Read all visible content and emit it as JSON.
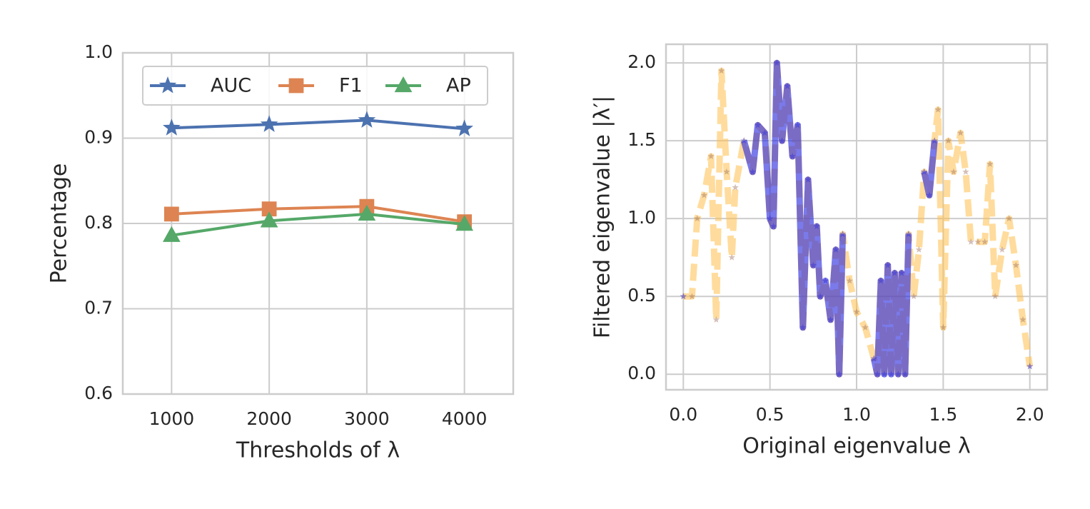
{
  "chart_data": [
    {
      "type": "line",
      "x": [
        1000,
        2000,
        3000,
        4000
      ],
      "xlim": [
        500,
        4500
      ],
      "xticks": [
        1000,
        2000,
        3000,
        4000
      ],
      "ylim": [
        0.6,
        1.0
      ],
      "yticks": [
        0.6,
        0.7,
        0.8,
        0.9,
        {
          "value": 1.0,
          "label": "1.0"
        }
      ],
      "xlabel": "Thresholds of λ",
      "ylabel": "Percentage",
      "grid": true,
      "legend": "upper center",
      "series": [
        {
          "name": "AUC",
          "color": "#4c72b0",
          "marker": "star",
          "values": [
            0.912,
            0.916,
            0.921,
            0.911
          ]
        },
        {
          "name": "F1",
          "color": "#dd8452",
          "marker": "square",
          "values": [
            0.811,
            0.817,
            0.82,
            0.802
          ]
        },
        {
          "name": "AP",
          "color": "#55a868",
          "marker": "triangle",
          "values": [
            0.786,
            0.803,
            0.811,
            0.799
          ]
        }
      ]
    },
    {
      "type": "line",
      "x": [
        0,
        0.05,
        0.08,
        0.12,
        0.16,
        0.19,
        0.22,
        0.25,
        0.28,
        0.3,
        0.35,
        0.4,
        0.43,
        0.47,
        0.5,
        0.52,
        0.54,
        0.57,
        0.6,
        0.63,
        0.66,
        0.69,
        0.72,
        0.75,
        0.77,
        0.79,
        0.82,
        0.85,
        0.88,
        0.9,
        0.92,
        0.96,
        1.0,
        1.05,
        1.1,
        1.12,
        1.14,
        1.16,
        1.18,
        1.2,
        1.22,
        1.24,
        1.26,
        1.28,
        1.3,
        1.33,
        1.36,
        1.39,
        1.42,
        1.45,
        1.47,
        1.5,
        1.53,
        1.56,
        1.6,
        1.63,
        1.66,
        1.7,
        1.74,
        1.77,
        1.8,
        1.84,
        1.88,
        1.92,
        1.96,
        2.0
      ],
      "xlim": [
        -0.1,
        2.1
      ],
      "xticks": [
        {
          "value": 0,
          "label": "0.0"
        },
        0.5,
        {
          "value": 1,
          "label": "1.0"
        },
        1.5,
        {
          "value": 2,
          "label": "2.0"
        }
      ],
      "ylim": [
        -0.1,
        2.12
      ],
      "yticks": [
        {
          "value": 0,
          "label": "0.0"
        },
        0.5,
        {
          "value": 1,
          "label": "1.0"
        },
        1.5,
        {
          "value": 2,
          "label": "2.0"
        }
      ],
      "xlabel": "Original eigenvalue λ",
      "ylabel": "Filtered eigenvalue |λ′|",
      "grid": true,
      "series": [
        {
          "color": "#ffc04d",
          "marker": "star",
          "linestyle": "dashed",
          "values": [
            0.5,
            0.5,
            1.0,
            1.15,
            1.4,
            0.35,
            1.95,
            1.3,
            0.75,
            1.2,
            1.5,
            1.3,
            1.6,
            1.55,
            1.0,
            0.95,
            2.0,
            1.5,
            1.85,
            1.4,
            1.6,
            0.3,
            1.25,
            0.7,
            0.95,
            0.5,
            0.6,
            0.35,
            0.8,
            0.0,
            0.9,
            0.6,
            0.4,
            0.3,
            0.1,
            0.0,
            0.6,
            0.0,
            0.7,
            0.0,
            0.65,
            0.0,
            0.65,
            0.0,
            0.9,
            0.5,
            0.8,
            1.3,
            1.15,
            1.5,
            1.7,
            0.3,
            1.5,
            1.3,
            1.55,
            1.3,
            0.85,
            0.85,
            0.85,
            1.35,
            0.5,
            0.8,
            1.0,
            0.7,
            0.35,
            0.05
          ]
        },
        {
          "color": "#2222dd",
          "marker": "star",
          "linestyle": "solid",
          "values": [
            0.5,
            null,
            null,
            null,
            null,
            null,
            null,
            null,
            null,
            null,
            1.5,
            1.3,
            1.6,
            1.55,
            1.0,
            0.95,
            2.0,
            1.5,
            1.85,
            1.4,
            1.6,
            0.3,
            1.25,
            0.7,
            0.95,
            0.5,
            0.6,
            0.35,
            0.8,
            0.0,
            0.9,
            null,
            null,
            null,
            0.1,
            0.0,
            0.6,
            0.0,
            0.7,
            0.0,
            0.65,
            0.0,
            0.65,
            0.0,
            0.9,
            null,
            null,
            1.3,
            1.15,
            1.5,
            null,
            null,
            null,
            null,
            null,
            null,
            null,
            null,
            null,
            null,
            null,
            null,
            null,
            null,
            null,
            0.05
          ]
        }
      ]
    }
  ]
}
